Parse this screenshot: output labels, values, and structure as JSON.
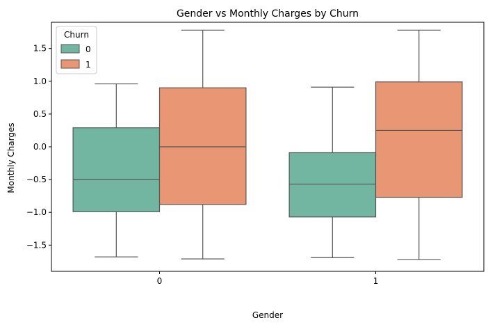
{
  "chart_data": {
    "type": "box",
    "title": "Gender vs Monthly Charges by Churn",
    "xlabel": "Gender",
    "ylabel": "Monthly Charges",
    "categories": [
      "0",
      "1"
    ],
    "ylim": [
      -1.9,
      1.9
    ],
    "yticks": [
      -1.5,
      -1.0,
      -0.5,
      0.0,
      0.5,
      1.0,
      1.5
    ],
    "ytick_labels": [
      "−1.5",
      "−1.0",
      "−0.5",
      "0.0",
      "0.5",
      "1.0",
      "1.5"
    ],
    "legend": {
      "title": "Churn",
      "placement": "top-left"
    },
    "series": [
      {
        "name": "0",
        "color": "#72b6a1",
        "boxes": [
          {
            "whisker_low": -1.68,
            "q1": -0.99,
            "median": -0.5,
            "q3": 0.29,
            "whisker_high": 0.96
          },
          {
            "whisker_low": -1.69,
            "q1": -1.07,
            "median": -0.57,
            "q3": -0.09,
            "whisker_high": 0.91
          }
        ]
      },
      {
        "name": "1",
        "color": "#e99675",
        "boxes": [
          {
            "whisker_low": -1.71,
            "q1": -0.88,
            "median": 0.0,
            "q3": 0.9,
            "whisker_high": 1.78
          },
          {
            "whisker_low": -1.72,
            "q1": -0.77,
            "median": 0.25,
            "q3": 0.99,
            "whisker_high": 1.78
          }
        ]
      }
    ]
  }
}
